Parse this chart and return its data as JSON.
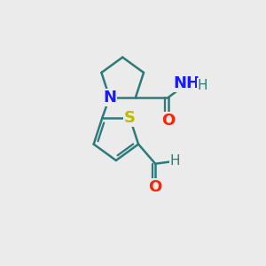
{
  "background_color": "#ebebeb",
  "bond_color": "#2d7a7a",
  "bond_width": 1.8,
  "atoms": {
    "N": {
      "color": "#1a1aff",
      "fontsize": 13,
      "fontweight": "bold"
    },
    "O": {
      "color": "#ff2200",
      "fontsize": 13,
      "fontweight": "bold"
    },
    "S": {
      "color": "#bbbb00",
      "fontsize": 13,
      "fontweight": "bold"
    },
    "H": {
      "color": "#2d7a7a",
      "fontsize": 11,
      "fontweight": "normal"
    }
  },
  "figsize": [
    3.0,
    3.0
  ],
  "dpi": 100,
  "xlim": [
    0,
    10
  ],
  "ylim": [
    0,
    10
  ]
}
